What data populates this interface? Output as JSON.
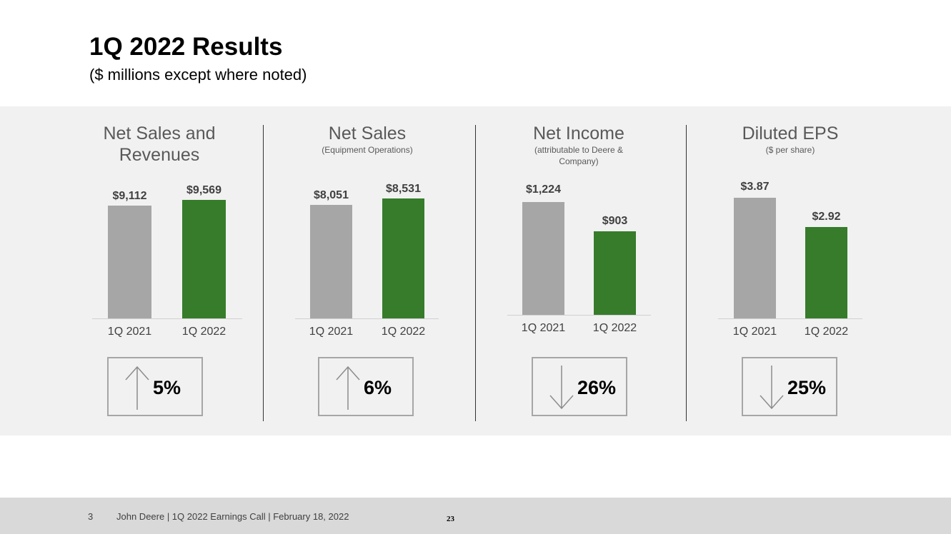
{
  "title": "1Q 2022 Results",
  "subtitle": "($ millions except where noted)",
  "colors": {
    "prior": "#a6a6a6",
    "current": "#367c2b",
    "band": "#f1f1f1"
  },
  "chart_data": [
    {
      "type": "bar",
      "title": "Net Sales and Revenues",
      "subtitle": "",
      "categories": [
        "1Q 2021",
        "1Q 2022"
      ],
      "values": [
        9112,
        9569
      ],
      "value_labels": [
        "$9,112",
        "$9,569"
      ],
      "change_label": "5%",
      "direction": "up"
    },
    {
      "type": "bar",
      "title": "Net Sales",
      "subtitle": "(Equipment Operations)",
      "categories": [
        "1Q 2021",
        "1Q 2022"
      ],
      "values": [
        8051,
        8531
      ],
      "value_labels": [
        "$8,051",
        "$8,531"
      ],
      "change_label": "6%",
      "direction": "up"
    },
    {
      "type": "bar",
      "title": "Net Income",
      "subtitle": "(attributable to Deere & Company)",
      "categories": [
        "1Q 2021",
        "1Q 2022"
      ],
      "values": [
        1224,
        903
      ],
      "value_labels": [
        "$1,224",
        "$903"
      ],
      "change_label": "26%",
      "direction": "down"
    },
    {
      "type": "bar",
      "title": "Diluted EPS",
      "subtitle": "($ per share)",
      "categories": [
        "1Q 2021",
        "1Q 2022"
      ],
      "values": [
        3.87,
        2.92
      ],
      "value_labels": [
        "$3.87",
        "$2.92"
      ],
      "change_label": "25%",
      "direction": "down"
    }
  ],
  "footer": {
    "slide_number": "3",
    "text": "John Deere | 1Q 2022 Earnings Call | February 18, 2022",
    "page": "23"
  }
}
